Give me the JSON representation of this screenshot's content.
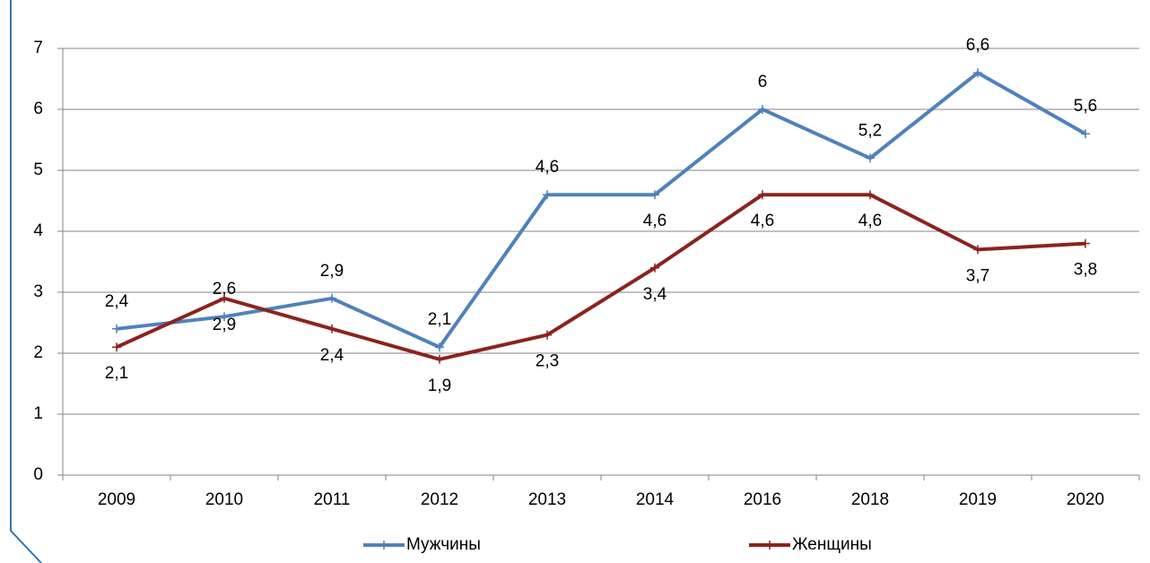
{
  "chart_data": {
    "type": "line",
    "categories": [
      "2009",
      "2010",
      "2011",
      "2012",
      "2013",
      "2014",
      "2016",
      "2018",
      "2019",
      "2020"
    ],
    "series": [
      {
        "name": "Мужчины",
        "color": "#4f81bd",
        "values": [
          2.4,
          2.6,
          2.9,
          2.1,
          4.6,
          4.6,
          6,
          5.2,
          6.6,
          5.6
        ],
        "value_labels": [
          "2,4",
          "2,6",
          "2,9",
          "2,1",
          "4,6",
          "4,6",
          "6",
          "5,2",
          "6,6",
          "5,6"
        ]
      },
      {
        "name": "Женщины",
        "color": "#8b231d",
        "values": [
          2.1,
          2.9,
          2.4,
          1.9,
          2.3,
          3.4,
          4.6,
          4.6,
          3.7,
          3.8
        ],
        "value_labels": [
          "2,1",
          "2,9",
          "2,4",
          "1,9",
          "2,3",
          "3,4",
          "4,6",
          "4,6",
          "3,7",
          "3,8"
        ]
      }
    ],
    "ylim": [
      0,
      7
    ],
    "yticks": [
      0,
      1,
      2,
      3,
      4,
      5,
      6,
      7
    ],
    "grid": true,
    "legend": "bottom"
  }
}
